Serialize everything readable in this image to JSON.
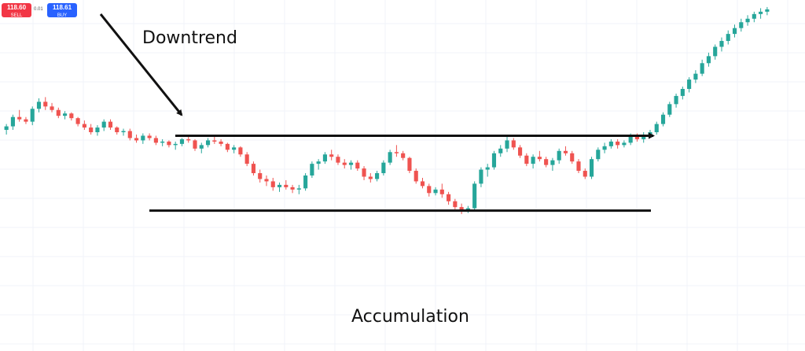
{
  "trade_panel": {
    "sell_price": "118.60",
    "sell_label": "SELL",
    "spread": "0.01",
    "buy_price": "118.61",
    "buy_label": "BUY",
    "sell_color": "#f23645",
    "buy_color": "#2962ff"
  },
  "annotations": {
    "downtrend": "Downtrend",
    "accumulation": "Accumulation"
  },
  "chart_data": {
    "type": "candlestick",
    "grid": true,
    "axes_visible": false,
    "colors": {
      "up": "#26a69a",
      "down": "#ef5350",
      "grid": "#f0f3fa",
      "lines": "#111111"
    },
    "price_range": [
      97,
      127
    ],
    "candles": [
      [
        115.9,
        116.4,
        115.5,
        116.2
      ],
      [
        116.2,
        117.2,
        115.9,
        117.0
      ],
      [
        117.0,
        117.6,
        116.6,
        116.8
      ],
      [
        116.8,
        117.0,
        116.4,
        116.6
      ],
      [
        116.6,
        117.9,
        116.3,
        117.7
      ],
      [
        117.7,
        118.6,
        117.4,
        118.3
      ],
      [
        118.3,
        118.7,
        117.6,
        117.9
      ],
      [
        117.9,
        118.2,
        117.4,
        117.6
      ],
      [
        117.6,
        117.8,
        116.9,
        117.1
      ],
      [
        117.1,
        117.5,
        116.8,
        117.3
      ],
      [
        117.3,
        117.4,
        116.7,
        116.9
      ],
      [
        116.9,
        117.0,
        116.2,
        116.4
      ],
      [
        116.4,
        116.7,
        115.9,
        116.1
      ],
      [
        116.1,
        116.4,
        115.5,
        115.7
      ],
      [
        115.7,
        116.3,
        115.4,
        116.1
      ],
      [
        116.1,
        116.8,
        115.8,
        116.6
      ],
      [
        116.6,
        116.8,
        115.9,
        116.1
      ],
      [
        116.1,
        116.2,
        115.5,
        115.7
      ],
      [
        115.7,
        116.0,
        115.4,
        115.8
      ],
      [
        115.8,
        116.0,
        115.0,
        115.2
      ],
      [
        115.2,
        115.5,
        114.8,
        115.0
      ],
      [
        115.0,
        115.6,
        114.7,
        115.4
      ],
      [
        115.4,
        115.6,
        115.0,
        115.2
      ],
      [
        115.2,
        115.4,
        114.6,
        114.8
      ],
      [
        114.8,
        115.1,
        114.5,
        114.9
      ],
      [
        114.9,
        115.0,
        114.4,
        114.6
      ],
      [
        114.6,
        114.9,
        114.2,
        114.7
      ],
      [
        114.7,
        115.2,
        114.5,
        115.1
      ],
      [
        115.1,
        115.3,
        114.8,
        115.0
      ],
      [
        115.0,
        115.1,
        114.1,
        114.3
      ],
      [
        114.3,
        114.8,
        113.9,
        114.6
      ],
      [
        114.6,
        115.2,
        114.4,
        115.0
      ],
      [
        115.0,
        115.4,
        114.7,
        114.9
      ],
      [
        114.9,
        115.1,
        114.5,
        114.7
      ],
      [
        114.7,
        114.8,
        114.0,
        114.2
      ],
      [
        114.2,
        114.6,
        113.9,
        114.4
      ],
      [
        114.4,
        114.5,
        113.6,
        113.8
      ],
      [
        113.8,
        114.0,
        112.8,
        113.0
      ],
      [
        113.0,
        113.2,
        112.0,
        112.2
      ],
      [
        112.2,
        112.5,
        111.4,
        111.7
      ],
      [
        111.7,
        112.0,
        111.1,
        111.5
      ],
      [
        111.5,
        111.8,
        110.7,
        111.0
      ],
      [
        111.0,
        111.4,
        110.6,
        111.2
      ],
      [
        111.2,
        111.6,
        110.8,
        111.0
      ],
      [
        111.0,
        111.2,
        110.5,
        110.8
      ],
      [
        110.8,
        111.2,
        110.4,
        110.9
      ],
      [
        110.9,
        112.2,
        110.7,
        112.0
      ],
      [
        112.0,
        113.2,
        111.8,
        113.0
      ],
      [
        113.0,
        113.4,
        112.5,
        113.2
      ],
      [
        113.2,
        114.0,
        113.0,
        113.8
      ],
      [
        113.8,
        114.2,
        113.3,
        113.6
      ],
      [
        113.6,
        113.8,
        112.9,
        113.1
      ],
      [
        113.1,
        113.4,
        112.6,
        112.9
      ],
      [
        112.9,
        113.3,
        112.5,
        113.1
      ],
      [
        113.1,
        113.3,
        112.4,
        112.6
      ],
      [
        112.6,
        112.8,
        111.6,
        111.9
      ],
      [
        111.9,
        112.2,
        111.4,
        111.7
      ],
      [
        111.7,
        112.4,
        111.5,
        112.2
      ],
      [
        112.2,
        113.3,
        112.0,
        113.1
      ],
      [
        113.1,
        114.2,
        112.9,
        114.0
      ],
      [
        114.0,
        114.6,
        113.6,
        113.9
      ],
      [
        113.9,
        114.1,
        113.3,
        113.5
      ],
      [
        113.5,
        113.6,
        112.2,
        112.4
      ],
      [
        112.4,
        112.6,
        111.3,
        111.5
      ],
      [
        111.5,
        111.8,
        110.9,
        111.1
      ],
      [
        111.1,
        111.3,
        110.2,
        110.5
      ],
      [
        110.5,
        111.0,
        110.3,
        110.8
      ],
      [
        110.8,
        111.3,
        110.1,
        110.4
      ],
      [
        110.4,
        110.6,
        109.5,
        109.8
      ],
      [
        109.8,
        110.0,
        109.1,
        109.3
      ],
      [
        109.3,
        109.6,
        108.7,
        109.0
      ],
      [
        109.0,
        109.4,
        108.8,
        109.2
      ],
      [
        109.2,
        111.5,
        109.0,
        111.3
      ],
      [
        111.3,
        112.7,
        111.0,
        112.5
      ],
      [
        112.5,
        113.0,
        111.9,
        112.7
      ],
      [
        112.7,
        114.1,
        112.5,
        113.9
      ],
      [
        113.9,
        114.6,
        113.6,
        114.3
      ],
      [
        114.3,
        115.3,
        114.0,
        115.0
      ],
      [
        115.0,
        115.2,
        114.2,
        114.4
      ],
      [
        114.4,
        114.6,
        113.5,
        113.7
      ],
      [
        113.7,
        113.9,
        112.8,
        113.0
      ],
      [
        113.0,
        113.8,
        112.6,
        113.6
      ],
      [
        113.6,
        114.1,
        113.2,
        113.4
      ],
      [
        113.4,
        113.6,
        112.7,
        112.9
      ],
      [
        112.9,
        113.5,
        112.4,
        113.3
      ],
      [
        113.3,
        114.3,
        113.0,
        114.1
      ],
      [
        114.1,
        114.5,
        113.7,
        113.9
      ],
      [
        113.9,
        114.1,
        113.0,
        113.2
      ],
      [
        113.2,
        113.4,
        112.2,
        112.4
      ],
      [
        112.4,
        112.6,
        111.7,
        111.9
      ],
      [
        111.9,
        113.6,
        111.7,
        113.4
      ],
      [
        113.4,
        114.4,
        113.2,
        114.2
      ],
      [
        114.2,
        114.8,
        113.9,
        114.5
      ],
      [
        114.5,
        115.1,
        114.3,
        114.9
      ],
      [
        114.9,
        115.1,
        114.3,
        114.6
      ],
      [
        114.6,
        115.0,
        114.4,
        114.8
      ],
      [
        114.8,
        115.6,
        114.6,
        115.4
      ],
      [
        115.4,
        115.6,
        114.9,
        115.1
      ],
      [
        115.1,
        115.7,
        114.8,
        115.5
      ],
      [
        115.5,
        115.9,
        115.3,
        115.7
      ],
      [
        115.7,
        116.6,
        115.5,
        116.4
      ],
      [
        116.4,
        117.4,
        116.2,
        117.2
      ],
      [
        117.2,
        118.3,
        117.0,
        118.1
      ],
      [
        118.1,
        119.0,
        117.8,
        118.8
      ],
      [
        118.8,
        119.6,
        118.5,
        119.4
      ],
      [
        119.4,
        120.4,
        119.1,
        120.2
      ],
      [
        120.2,
        121.0,
        119.9,
        120.7
      ],
      [
        120.7,
        121.9,
        120.5,
        121.6
      ],
      [
        121.6,
        122.5,
        121.3,
        122.2
      ],
      [
        122.2,
        123.2,
        121.9,
        123.0
      ],
      [
        123.0,
        123.8,
        122.6,
        123.5
      ],
      [
        123.5,
        124.4,
        123.2,
        124.1
      ],
      [
        124.1,
        124.9,
        123.8,
        124.6
      ],
      [
        124.6,
        125.4,
        124.3,
        125.1
      ],
      [
        125.1,
        125.7,
        124.8,
        125.4
      ],
      [
        125.4,
        126.0,
        125.1,
        125.8
      ],
      [
        125.8,
        126.3,
        125.4,
        126.0
      ],
      [
        126.0,
        126.4,
        125.7,
        126.2
      ]
    ],
    "resistance_level": 115.4,
    "support_level": 109.0
  }
}
